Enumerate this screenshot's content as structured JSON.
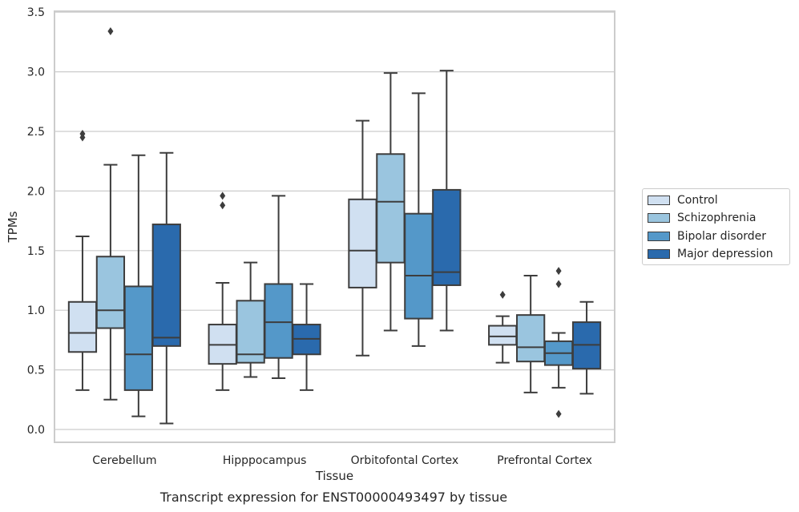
{
  "caption": "Transcript expression for ENST00000493497 by tissue",
  "chart_data": {
    "type": "boxplot",
    "xlabel": "Tissue",
    "ylabel": "TPMs",
    "ylim": [
      -0.12,
      3.5
    ],
    "yticks": [
      "0.0",
      "0.5",
      "1.0",
      "1.5",
      "2.0",
      "2.5",
      "3.0",
      "3.5"
    ],
    "grid": "horizontal",
    "legend_position": "right",
    "categories": [
      "Cerebellum",
      "Hipppocampus",
      "Orbitofontal Cortex",
      "Prefrontal Cortex"
    ],
    "series": [
      {
        "name": "Control",
        "color": "#d0e0f1",
        "boxes": [
          {
            "whislo": 0.33,
            "q1": 0.65,
            "med": 0.81,
            "q3": 1.07,
            "whishi": 1.62,
            "fliers": [
              2.45,
              2.48
            ]
          },
          {
            "whislo": 0.33,
            "q1": 0.55,
            "med": 0.71,
            "q3": 0.88,
            "whishi": 1.23,
            "fliers": [
              1.88,
              1.96
            ]
          },
          {
            "whislo": 0.62,
            "q1": 1.19,
            "med": 1.5,
            "q3": 1.93,
            "whishi": 2.59,
            "fliers": []
          },
          {
            "whislo": 0.56,
            "q1": 0.71,
            "med": 0.78,
            "q3": 0.87,
            "whishi": 0.95,
            "fliers": [
              1.13
            ]
          }
        ]
      },
      {
        "name": "Schizophrenia",
        "color": "#9ac5df",
        "boxes": [
          {
            "whislo": 0.25,
            "q1": 0.85,
            "med": 1.0,
            "q3": 1.45,
            "whishi": 2.22,
            "fliers": [
              3.34
            ]
          },
          {
            "whislo": 0.44,
            "q1": 0.56,
            "med": 0.63,
            "q3": 1.08,
            "whishi": 1.4,
            "fliers": []
          },
          {
            "whislo": 0.83,
            "q1": 1.4,
            "med": 1.91,
            "q3": 2.31,
            "whishi": 2.99,
            "fliers": []
          },
          {
            "whislo": 0.31,
            "q1": 0.57,
            "med": 0.69,
            "q3": 0.96,
            "whishi": 1.29,
            "fliers": []
          }
        ]
      },
      {
        "name": "Bipolar disorder",
        "color": "#5498c9",
        "boxes": [
          {
            "whislo": 0.11,
            "q1": 0.33,
            "med": 0.63,
            "q3": 1.2,
            "whishi": 2.3,
            "fliers": []
          },
          {
            "whislo": 0.43,
            "q1": 0.6,
            "med": 0.9,
            "q3": 1.22,
            "whishi": 1.96,
            "fliers": []
          },
          {
            "whislo": 0.7,
            "q1": 0.93,
            "med": 1.29,
            "q3": 1.81,
            "whishi": 2.82,
            "fliers": []
          },
          {
            "whislo": 0.35,
            "q1": 0.54,
            "med": 0.64,
            "q3": 0.74,
            "whishi": 0.81,
            "fliers": [
              0.13,
              1.22,
              1.33
            ]
          }
        ]
      },
      {
        "name": "Major depression",
        "color": "#2a6aad",
        "boxes": [
          {
            "whislo": 0.05,
            "q1": 0.7,
            "med": 0.77,
            "q3": 1.72,
            "whishi": 2.32,
            "fliers": []
          },
          {
            "whislo": 0.33,
            "q1": 0.63,
            "med": 0.76,
            "q3": 0.88,
            "whishi": 1.22,
            "fliers": []
          },
          {
            "whislo": 0.83,
            "q1": 1.21,
            "med": 1.32,
            "q3": 2.01,
            "whishi": 3.01,
            "fliers": []
          },
          {
            "whislo": 0.3,
            "q1": 0.51,
            "med": 0.71,
            "q3": 0.9,
            "whishi": 1.07,
            "fliers": []
          }
        ]
      }
    ]
  }
}
